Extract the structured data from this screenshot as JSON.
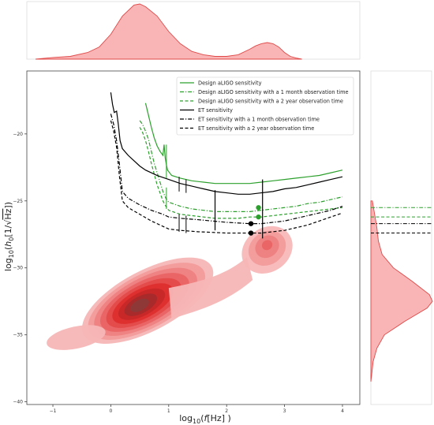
{
  "chart_data": {
    "type": "line",
    "xlabel": "log$_{10}$($f$[Hz] )",
    "xlabel_parts": [
      "log",
      "10",
      "(",
      "f",
      "[Hz] )"
    ],
    "ylabel": "log$_{10}$($h_0$[1/$\\sqrt{\\rm Hz}$])",
    "ylabel_parts": [
      "log",
      "10",
      "(",
      "h",
      "0",
      "[1/",
      "Hz",
      "])"
    ],
    "xlim": [
      -1.45,
      4.3
    ],
    "ylim": [
      -40.2,
      -15.3
    ],
    "xticks": [
      -1,
      0,
      1,
      2,
      3,
      4
    ],
    "xtick_labels": [
      "−1",
      "0",
      "1",
      "2",
      "3",
      "4"
    ],
    "yticks": [
      -20,
      -25,
      -30,
      -35,
      -40
    ],
    "ytick_labels": [
      "−20",
      "−25",
      "−30",
      "−35",
      "−40"
    ],
    "grid": false,
    "legend_position": "upper right",
    "colors": {
      "aligo": "#2ca02c",
      "et": "#000000",
      "kde": "#e31a1c",
      "kde_light": "#f7b6b6"
    },
    "series": [
      {
        "name": "Design aLIGO sensitivity",
        "style": "solid",
        "color": "#2ca02c",
        "x": [
          0.6,
          0.65,
          0.7,
          0.75,
          0.8,
          0.85,
          0.9,
          0.92,
          0.94,
          0.96,
          0.98,
          1.05,
          1.2,
          1.4,
          1.6,
          1.8,
          2.0,
          2.2,
          2.4,
          2.6,
          2.8,
          3.0,
          3.2,
          3.4,
          3.6,
          3.8,
          4.0
        ],
        "y": [
          -17.7,
          -18.6,
          -19.5,
          -20.3,
          -20.9,
          -21.3,
          -21.6,
          -20.8,
          -21.8,
          -22.3,
          -22.7,
          -23.1,
          -23.3,
          -23.5,
          -23.6,
          -23.7,
          -23.7,
          -23.7,
          -23.7,
          -23.6,
          -23.5,
          -23.4,
          -23.3,
          -23.2,
          -23.1,
          -22.9,
          -22.7
        ]
      },
      {
        "name": "Design aLIGO sensitivity with a 1 month observation time",
        "style": "dashdot",
        "color": "#2ca02c",
        "x": [
          0.5,
          0.55,
          0.6,
          0.65,
          0.7,
          0.75,
          0.8,
          0.85,
          0.9,
          0.95,
          1.0,
          1.2,
          1.4,
          1.6,
          1.8,
          2.0,
          2.2,
          2.4,
          2.6,
          2.8,
          3.0,
          3.2,
          3.4,
          3.6,
          3.8,
          4.0
        ],
        "y": [
          -19.0,
          -19.3,
          -19.8,
          -20.4,
          -21.3,
          -22.2,
          -22.9,
          -23.6,
          -24.3,
          -24.8,
          -25.1,
          -25.4,
          -25.6,
          -25.7,
          -25.8,
          -25.8,
          -25.8,
          -25.8,
          -25.7,
          -25.6,
          -25.5,
          -25.4,
          -25.2,
          -25.1,
          -24.9,
          -24.7
        ]
      },
      {
        "name": "Design aLIGO sensitivity with a 2 year observation time",
        "style": "dashed",
        "color": "#2ca02c",
        "x": [
          0.5,
          0.55,
          0.6,
          0.65,
          0.7,
          0.75,
          0.8,
          0.85,
          0.9,
          0.95,
          1.0,
          1.2,
          1.4,
          1.6,
          1.8,
          2.0,
          2.2,
          2.4,
          2.6,
          2.8,
          3.0,
          3.2,
          3.4,
          3.6,
          3.8,
          4.0
        ],
        "y": [
          -19.5,
          -19.9,
          -20.5,
          -21.3,
          -22.2,
          -23.0,
          -23.8,
          -24.4,
          -25.0,
          -25.4,
          -25.7,
          -26.0,
          -26.1,
          -26.2,
          -26.3,
          -26.3,
          -26.3,
          -26.2,
          -26.2,
          -26.1,
          -26.0,
          -25.9,
          -25.8,
          -25.7,
          -25.6,
          -25.5
        ]
      },
      {
        "name": "ET sensitivity",
        "style": "solid",
        "color": "#000000",
        "x": [
          0.0,
          0.03,
          0.06,
          0.1,
          0.13,
          0.16,
          0.2,
          0.3,
          0.4,
          0.5,
          0.6,
          0.8,
          1.0,
          1.2,
          1.4,
          1.6,
          1.8,
          2.0,
          2.2,
          2.4,
          2.6,
          2.8,
          3.0,
          3.2,
          3.4,
          3.6,
          3.8,
          4.0
        ],
        "y": [
          -16.9,
          -17.8,
          -18.4,
          -18.3,
          -19.3,
          -20.5,
          -21.1,
          -21.6,
          -22.0,
          -22.4,
          -22.7,
          -23.1,
          -23.4,
          -23.7,
          -23.9,
          -24.1,
          -24.3,
          -24.4,
          -24.5,
          -24.5,
          -24.4,
          -24.3,
          -24.1,
          -24.0,
          -23.8,
          -23.6,
          -23.4,
          -23.2
        ]
      },
      {
        "name": "ET sensitivity with a 1 month observation time",
        "style": "dashdot",
        "color": "#000000",
        "x": [
          0.0,
          0.05,
          0.1,
          0.15,
          0.2,
          0.3,
          0.5,
          0.7,
          0.9,
          1.0,
          1.2,
          1.5,
          2.0,
          2.4,
          2.6,
          2.8,
          3.0,
          3.2,
          3.4,
          3.6,
          3.8,
          4.0
        ],
        "y": [
          -18.5,
          -19.3,
          -20.5,
          -22.3,
          -24.3,
          -24.8,
          -25.3,
          -25.7,
          -26.0,
          -26.2,
          -26.3,
          -26.4,
          -26.6,
          -26.7,
          -26.7,
          -26.6,
          -26.5,
          -26.3,
          -26.1,
          -25.9,
          -25.7,
          -25.4
        ]
      },
      {
        "name": "ET sensitivity with a 2 year observation time",
        "style": "dashed",
        "color": "#000000",
        "x": [
          0.0,
          0.05,
          0.1,
          0.15,
          0.2,
          0.3,
          0.5,
          0.7,
          0.9,
          1.0,
          1.2,
          1.5,
          2.0,
          2.4,
          2.6,
          2.8,
          3.0,
          3.2,
          3.4,
          3.6,
          3.8,
          4.0
        ],
        "y": [
          -19.0,
          -19.8,
          -21.0,
          -23.2,
          -25.0,
          -25.5,
          -26.0,
          -26.5,
          -26.9,
          -27.1,
          -27.2,
          -27.3,
          -27.4,
          -27.4,
          -27.4,
          -27.3,
          -27.2,
          -27.0,
          -26.8,
          -26.5,
          -26.2,
          -25.9
        ]
      }
    ],
    "markers": [
      {
        "series": "aLIGO",
        "x": 2.55,
        "y": -25.5,
        "color": "#2ca02c"
      },
      {
        "series": "aLIGO",
        "x": 2.55,
        "y": -26.2,
        "color": "#2ca02c"
      },
      {
        "series": "ET",
        "x": 2.42,
        "y": -26.7,
        "color": "#000000"
      },
      {
        "series": "ET",
        "x": 2.42,
        "y": -27.4,
        "color": "#000000"
      }
    ],
    "vertical_markers": [
      {
        "x": 1.8,
        "y": [
          -24.2,
          -27.2
        ]
      },
      {
        "x": 2.62,
        "y": [
          -23.4,
          -27.8
        ]
      }
    ],
    "kde_main": {
      "fill_shades": [
        "#f7b6b6",
        "#f29a9a",
        "#ee7f7f",
        "#e96363",
        "#e34848",
        "#de2d2d",
        "#c62828",
        "#a52a2a",
        "#8c3a3a"
      ],
      "modes": [
        {
          "x": 0.5,
          "y": -32.8,
          "weight": 1.0
        },
        {
          "x": 2.7,
          "y": -28.3,
          "weight": 0.45
        }
      ],
      "support_y": [
        -36.5,
        -26.0
      ],
      "support_x": [
        -1.2,
        3.3
      ]
    },
    "marginal_x": {
      "x": [
        -1.3,
        -1.0,
        -0.7,
        -0.4,
        -0.2,
        0.0,
        0.2,
        0.4,
        0.5,
        0.6,
        0.8,
        1.0,
        1.2,
        1.4,
        1.6,
        1.8,
        2.0,
        2.2,
        2.4,
        2.5,
        2.6,
        2.7,
        2.8,
        2.9,
        3.0,
        3.1,
        3.2,
        3.3
      ],
      "density": [
        0.0,
        0.03,
        0.05,
        0.12,
        0.22,
        0.45,
        0.78,
        0.98,
        1.0,
        0.95,
        0.78,
        0.5,
        0.28,
        0.14,
        0.08,
        0.05,
        0.05,
        0.08,
        0.18,
        0.24,
        0.28,
        0.3,
        0.28,
        0.22,
        0.12,
        0.05,
        0.02,
        0.0
      ]
    },
    "marginal_y": {
      "y": [
        -25.0,
        -26.0,
        -27.0,
        -28.0,
        -29.0,
        -30.0,
        -31.0,
        -32.0,
        -32.5,
        -33.0,
        -34.0,
        -35.0,
        -36.0,
        -37.0,
        -38.5
      ],
      "density": [
        0.02,
        0.05,
        0.08,
        0.1,
        0.15,
        0.3,
        0.55,
        0.78,
        0.82,
        0.75,
        0.45,
        0.18,
        0.08,
        0.03,
        0.0
      ]
    }
  }
}
